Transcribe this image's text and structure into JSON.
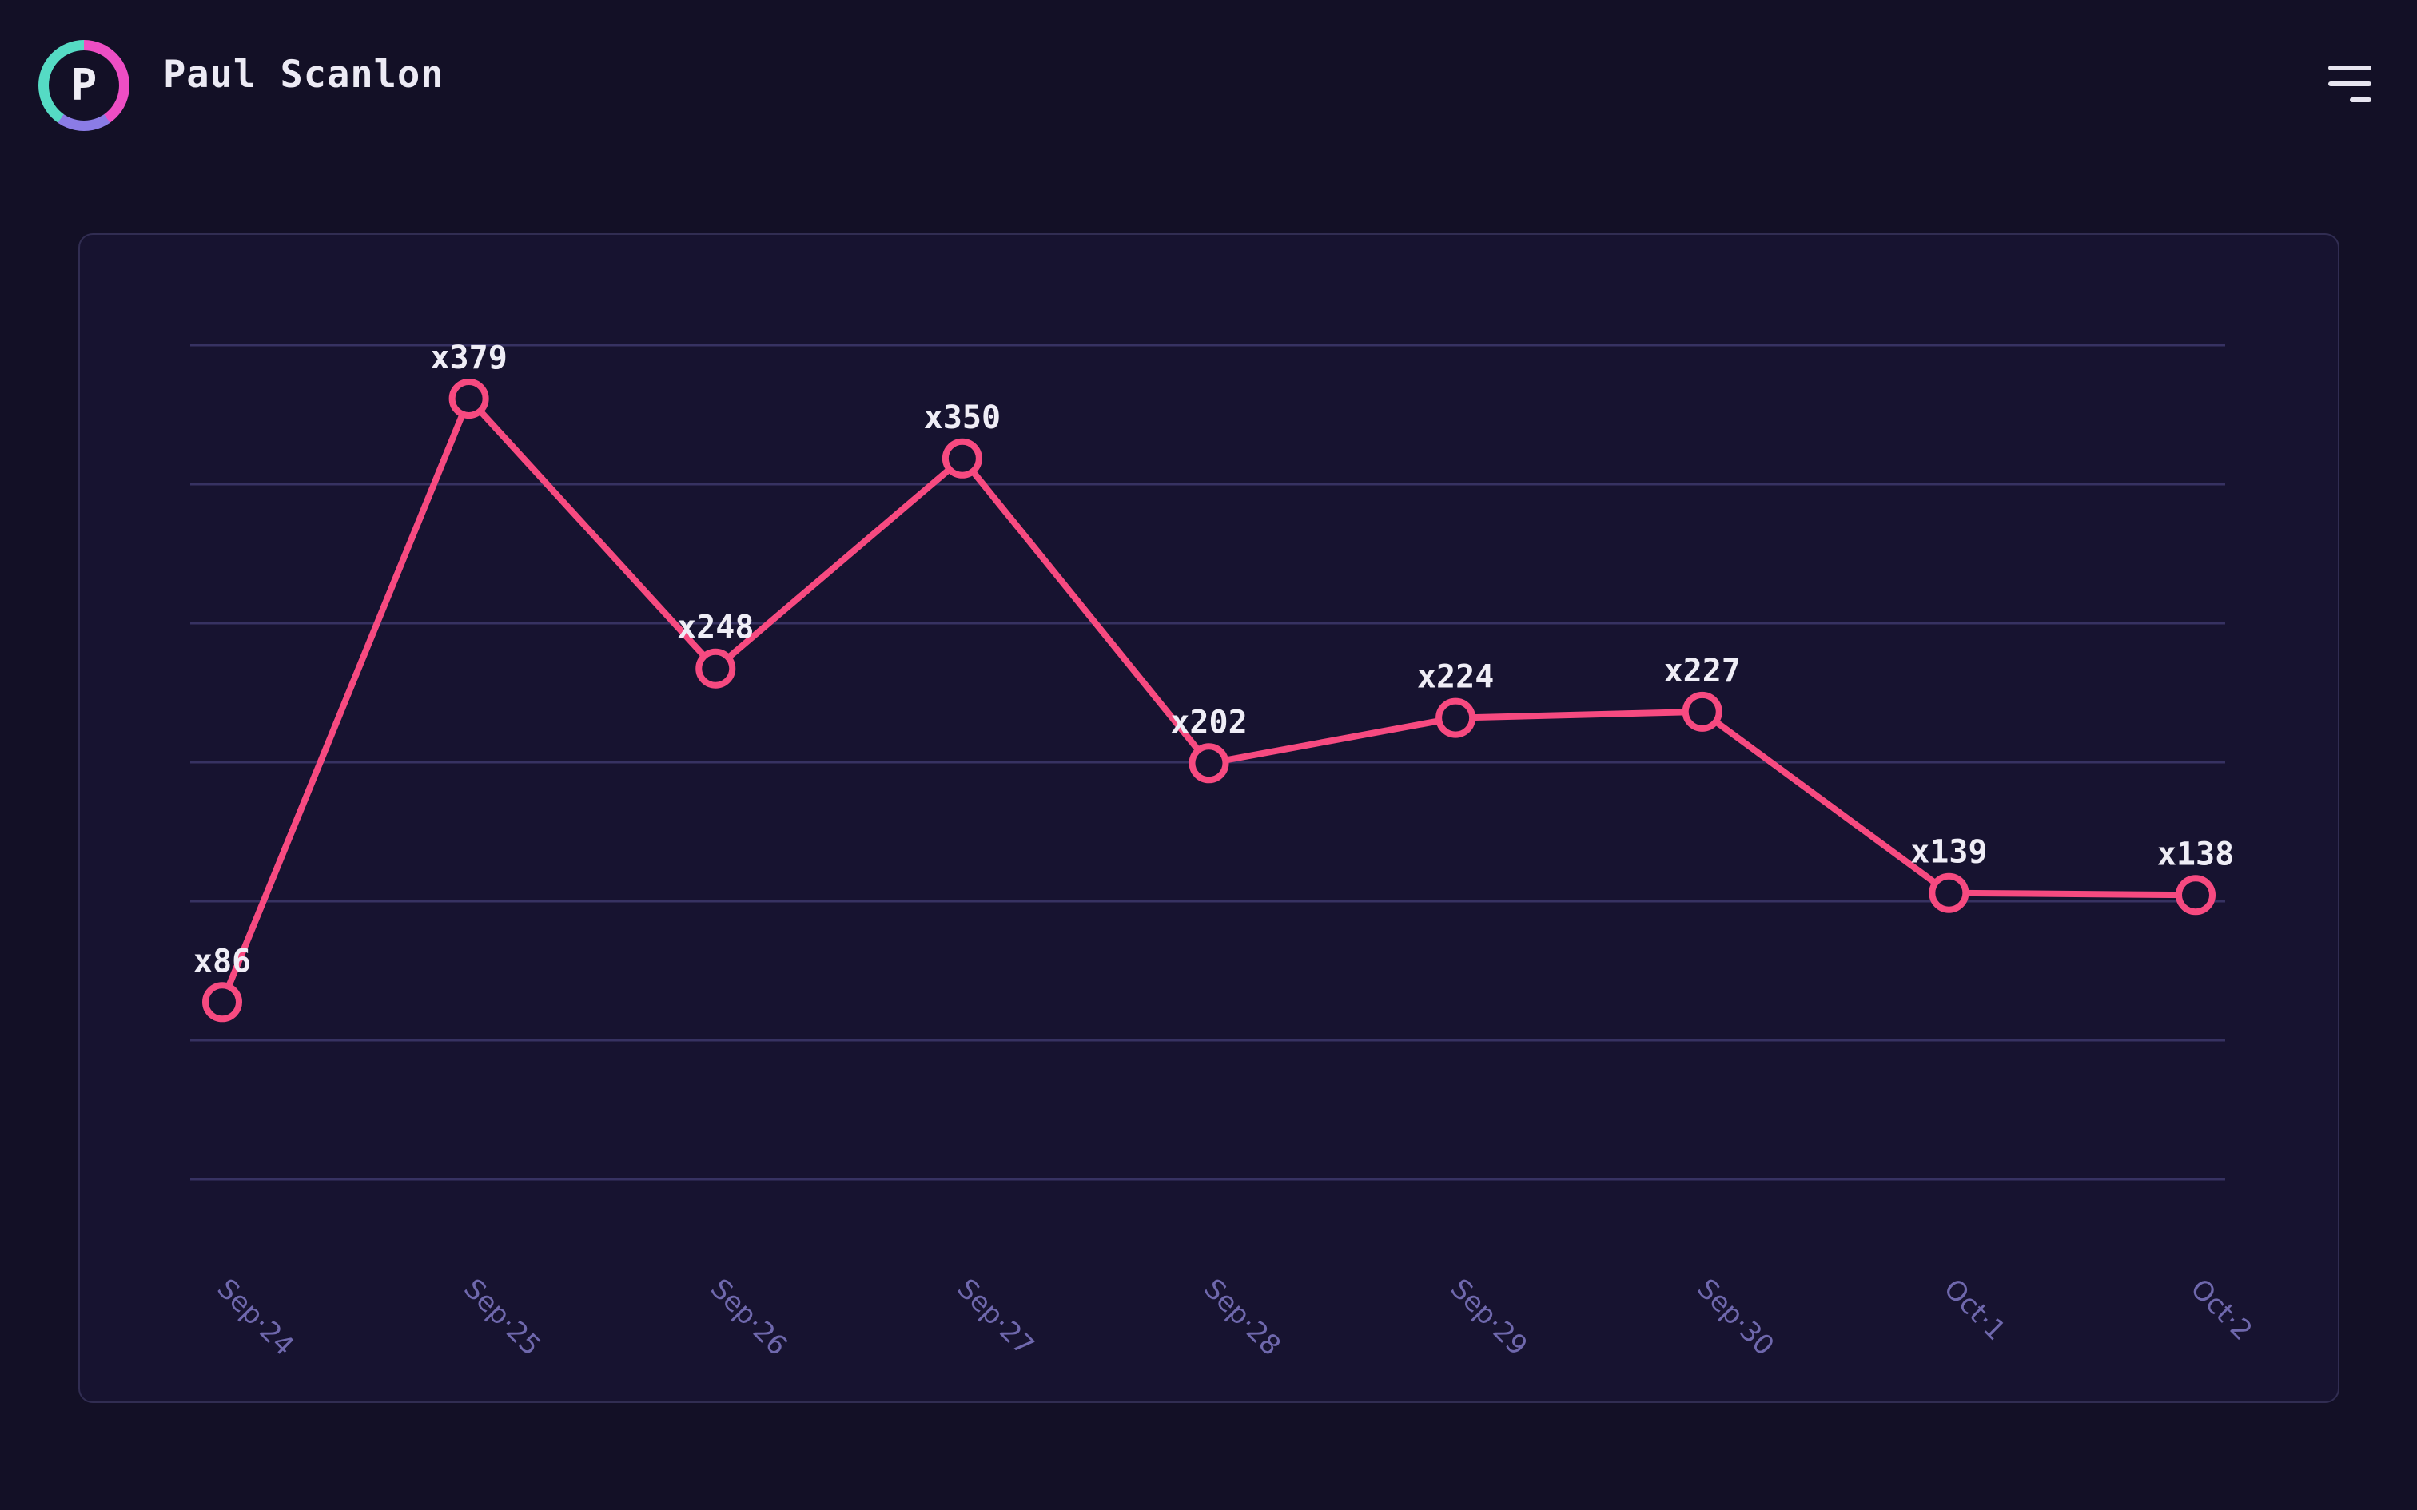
{
  "header": {
    "user_name": "Paul Scanlon",
    "avatar_initial": "P"
  },
  "colors": {
    "page_bg": "#131026",
    "card_bg": "#171330",
    "card_border": "#312d52",
    "gridline": "#373262",
    "line": "#f74a80",
    "marker_fill": "#171330",
    "point_label": "#efedf6",
    "axis_label": "#6f68ad",
    "header_text": "#eceaf4",
    "icon": "#e7e5f0",
    "avatar_ring": [
      "#ee4ec4",
      "#8b7ce6",
      "#55dbc4"
    ]
  },
  "chart_data": {
    "type": "line",
    "categories": [
      "Sep·24",
      "Sep·25",
      "Sep·26",
      "Sep·27",
      "Sep·28",
      "Sep·29",
      "Sep·30",
      "Oct·1",
      "Oct·2"
    ],
    "values": [
      86,
      379,
      248,
      350,
      202,
      224,
      227,
      139,
      138
    ],
    "point_labels": [
      "x86",
      "x379",
      "x248",
      "x350",
      "x202",
      "x224",
      "x227",
      "x139",
      "x138"
    ],
    "title": "",
    "xlabel": "",
    "ylabel": "",
    "ylim": [
      0,
      405
    ],
    "gridline_count": 7,
    "grid": "horizontal",
    "legend": "none",
    "marker_style": "hollow-circle",
    "x_tick_rotation_deg": 45
  }
}
